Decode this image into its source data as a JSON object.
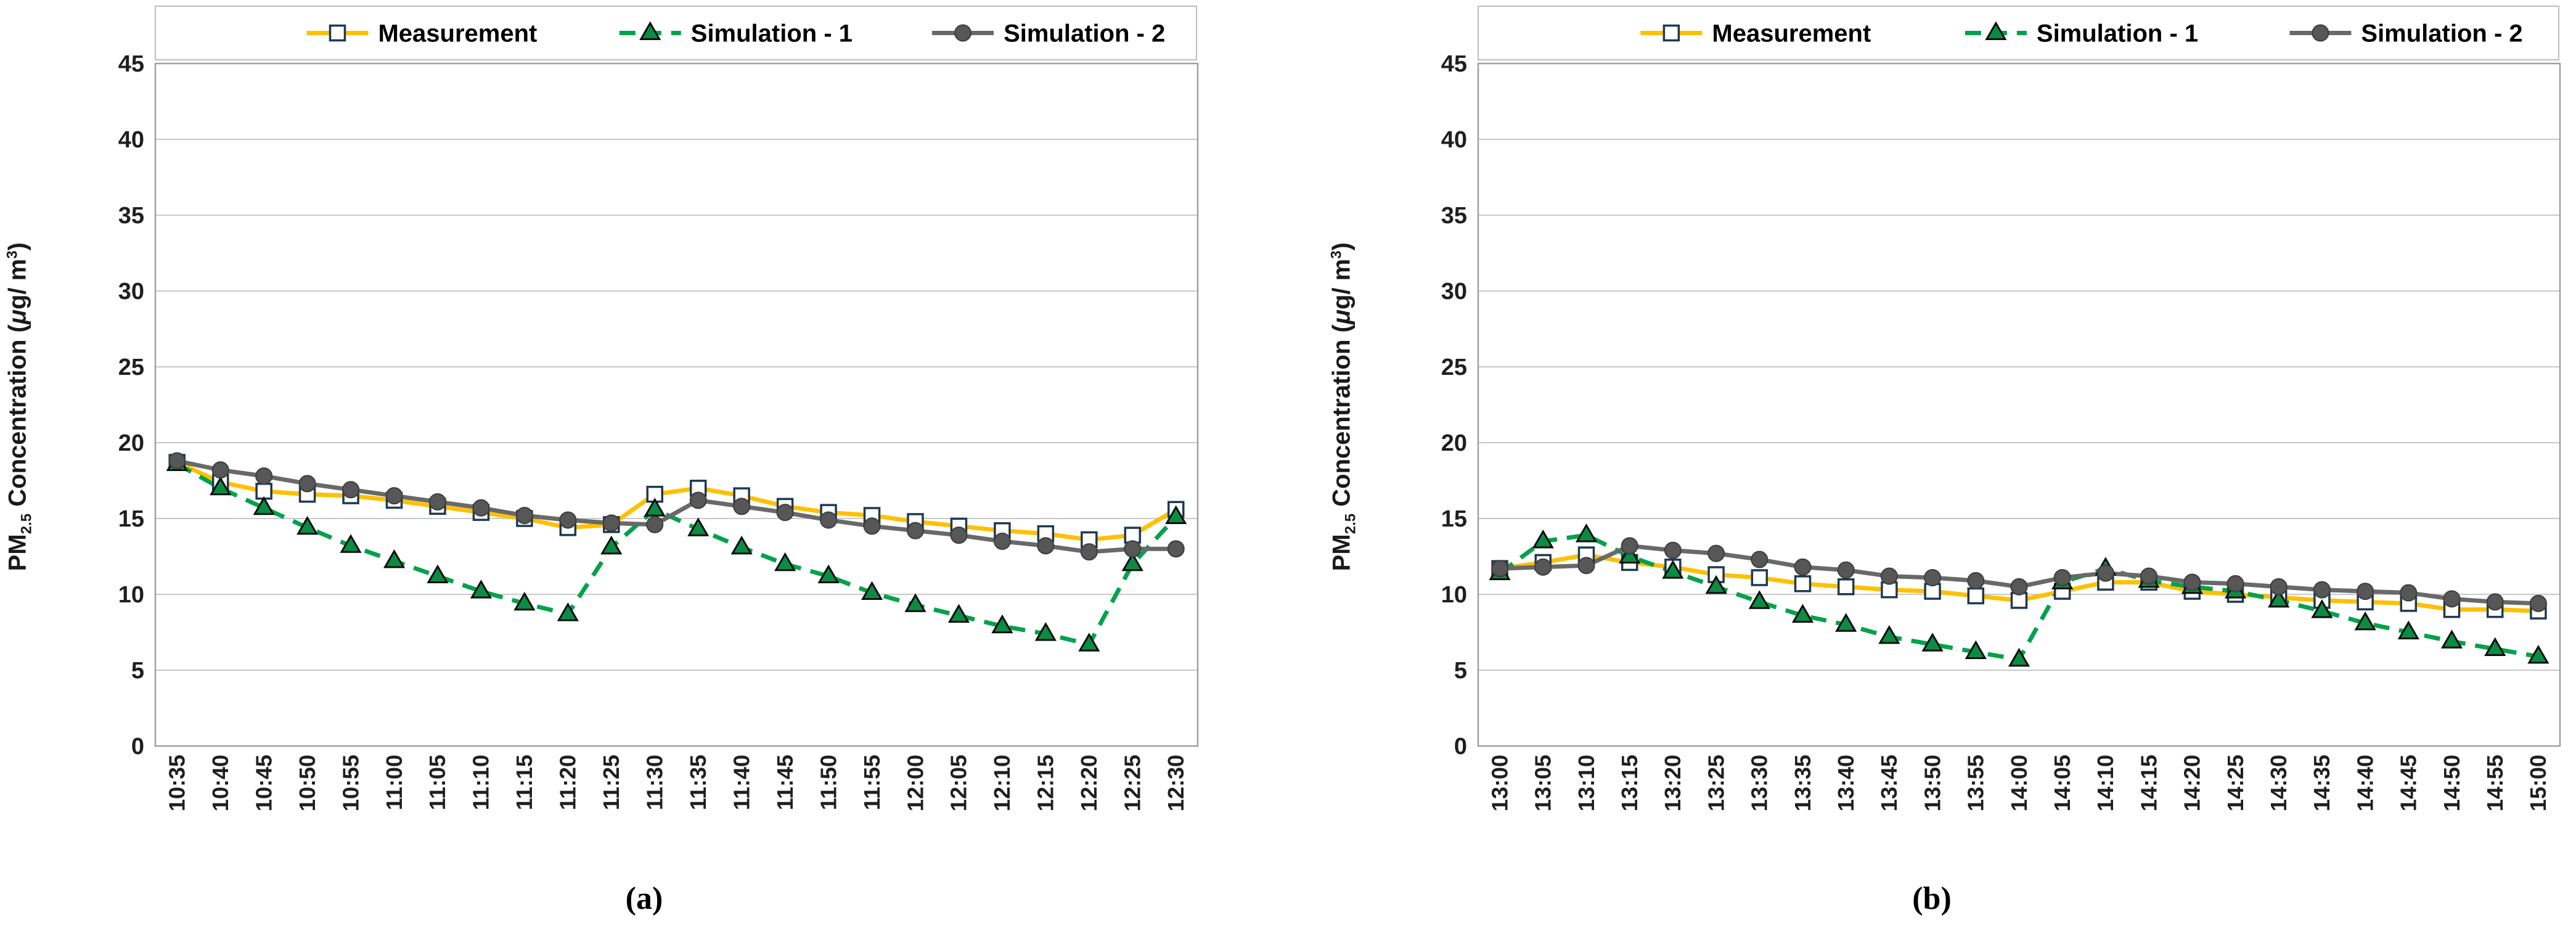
{
  "y_axis_title": {
    "pm": "PM",
    "sub": "2.5",
    "mid": " Concentration (",
    "mu": "μ",
    "gm": "g/ m",
    "sup": "3",
    "close": ")"
  },
  "colors": {
    "measurement": "#FFC000",
    "simulation1": "#00A24B",
    "simulation2": "#696969",
    "grid": "#C9C9C9",
    "plot_border": "#A0A0A0",
    "legend_border": "#BDBDBD",
    "square_marker_border": "#1E3A52",
    "triangle_fill": "#0B8B43",
    "circle_fill": "#575757",
    "tick_text": "#1f1f1f"
  },
  "chart_data": [
    {
      "type": "line",
      "panel": "a",
      "caption": "(a)",
      "title": "",
      "xlabel": "",
      "y_axis_label": "PM2.5 Concentration (μg/ m³)",
      "ylim": [
        0,
        45
      ],
      "yticks": [
        45,
        40,
        35,
        30,
        25,
        20,
        15,
        10,
        5,
        0
      ],
      "grid": "horizontal",
      "legend_position": "top",
      "categories": [
        "10:35",
        "10:40",
        "10:45",
        "10:50",
        "10:55",
        "11:00",
        "11:05",
        "11:10",
        "11:15",
        "11:20",
        "11:25",
        "11:30",
        "11:35",
        "11:40",
        "11:45",
        "11:50",
        "11:55",
        "12:00",
        "12:05",
        "12:10",
        "12:15",
        "12:20",
        "12:25",
        "12:30"
      ],
      "series": [
        {
          "name": "Measurement",
          "color": "#FFC000",
          "marker": "square",
          "marker_fill": "#FFFFFF",
          "dash": false,
          "values": [
            18.7,
            17.4,
            16.8,
            16.6,
            16.5,
            16.2,
            15.8,
            15.4,
            15.0,
            14.4,
            14.6,
            16.6,
            17.0,
            16.5,
            15.8,
            15.4,
            15.2,
            14.8,
            14.5,
            14.2,
            14.0,
            13.6,
            13.9,
            15.6
          ]
        },
        {
          "name": "Simulation - 1",
          "color": "#00A24B",
          "marker": "triangle",
          "marker_fill": "#0B8B43",
          "dash": true,
          "values": [
            18.6,
            17.0,
            15.7,
            14.4,
            13.2,
            12.2,
            11.2,
            10.2,
            9.4,
            8.7,
            13.1,
            15.6,
            14.3,
            13.1,
            12.0,
            11.2,
            10.1,
            9.3,
            8.6,
            7.9,
            7.4,
            6.7,
            12.0,
            15.1
          ]
        },
        {
          "name": "Simulation - 2",
          "color": "#696969",
          "marker": "circle",
          "marker_fill": "#575757",
          "dash": false,
          "values": [
            18.8,
            18.2,
            17.8,
            17.3,
            16.9,
            16.5,
            16.1,
            15.7,
            15.2,
            14.9,
            14.7,
            14.6,
            16.2,
            15.8,
            15.4,
            14.9,
            14.5,
            14.2,
            13.9,
            13.5,
            13.2,
            12.8,
            13.0,
            13.0
          ]
        }
      ]
    },
    {
      "type": "line",
      "panel": "b",
      "caption": "(b)",
      "title": "",
      "xlabel": "",
      "y_axis_label": "PM2.5 Concentration (μg/ m³)",
      "ylim": [
        0,
        45
      ],
      "yticks": [
        45,
        40,
        35,
        30,
        25,
        20,
        15,
        10,
        5,
        0
      ],
      "grid": "horizontal",
      "legend_position": "top",
      "categories": [
        "13:00",
        "13:05",
        "13:10",
        "13:15",
        "13:20",
        "13:25",
        "13:30",
        "13:35",
        "13:40",
        "13:45",
        "13:50",
        "13:55",
        "14:00",
        "14:05",
        "14:10",
        "14:15",
        "14:20",
        "14:25",
        "14:30",
        "14:35",
        "14:40",
        "14:45",
        "14:50",
        "14:55",
        "15:00"
      ],
      "series": [
        {
          "name": "Measurement",
          "color": "#FFC000",
          "marker": "square",
          "marker_fill": "#FFFFFF",
          "dash": false,
          "values": [
            11.7,
            12.1,
            12.6,
            12.1,
            11.8,
            11.3,
            11.1,
            10.7,
            10.5,
            10.3,
            10.2,
            9.9,
            9.6,
            10.2,
            10.8,
            10.8,
            10.2,
            10.0,
            9.8,
            9.6,
            9.5,
            9.4,
            9.0,
            9.0,
            8.9
          ]
        },
        {
          "name": "Simulation - 1",
          "color": "#00A24B",
          "marker": "triangle",
          "marker_fill": "#0B8B43",
          "dash": true,
          "values": [
            11.4,
            13.5,
            13.9,
            12.5,
            11.5,
            10.5,
            9.5,
            8.6,
            8.0,
            7.2,
            6.7,
            6.2,
            5.7,
            10.8,
            11.7,
            10.9,
            10.5,
            10.2,
            9.6,
            8.9,
            8.1,
            7.5,
            6.9,
            6.4,
            5.9
          ]
        },
        {
          "name": "Simulation - 2",
          "color": "#696969",
          "marker": "circle",
          "marker_fill": "#575757",
          "dash": false,
          "values": [
            11.7,
            11.8,
            11.9,
            13.2,
            12.9,
            12.7,
            12.3,
            11.8,
            11.6,
            11.2,
            11.1,
            10.9,
            10.5,
            11.1,
            11.4,
            11.2,
            10.8,
            10.7,
            10.5,
            10.3,
            10.2,
            10.1,
            9.7,
            9.5,
            9.4
          ]
        }
      ]
    }
  ]
}
